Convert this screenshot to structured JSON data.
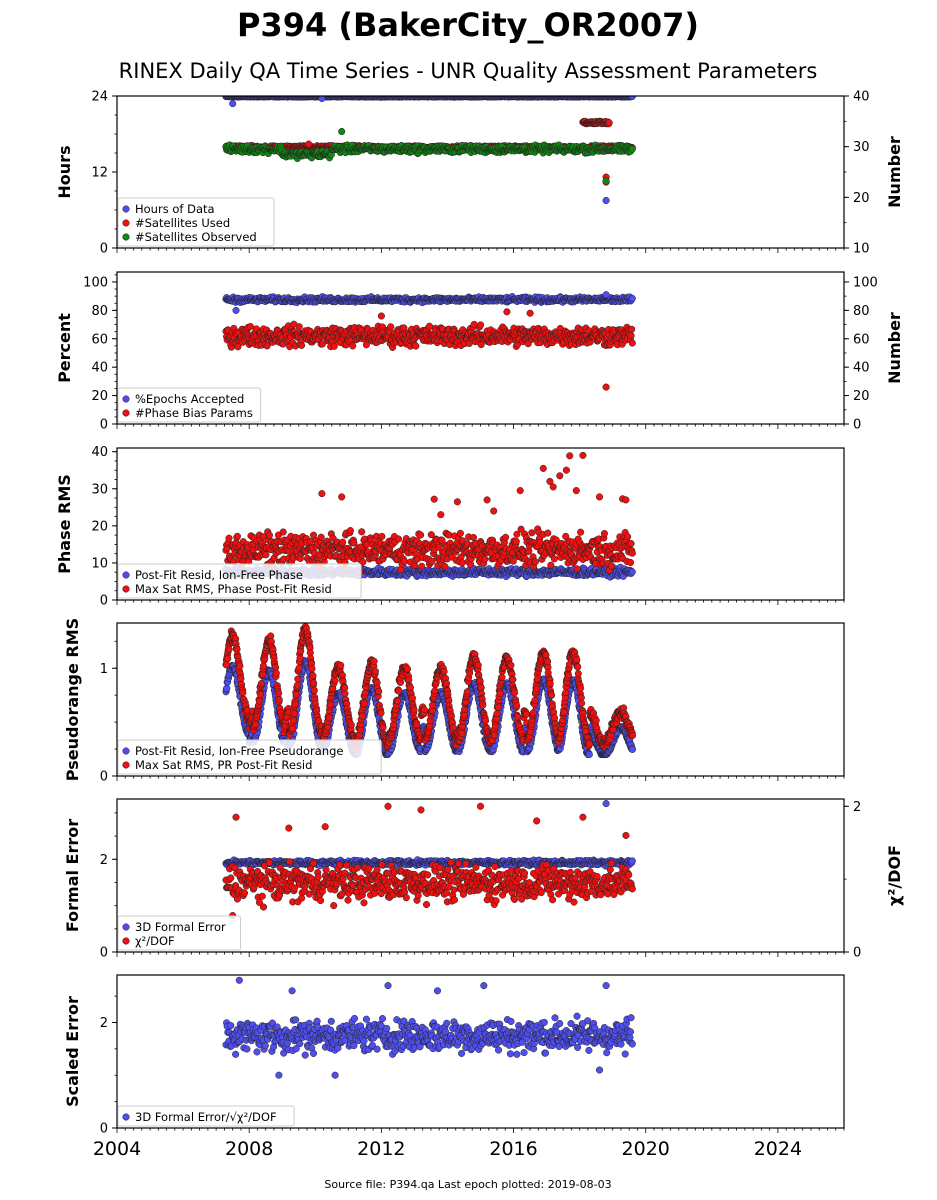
{
  "header": {
    "title": "P394 (BakerCity_OR2007)",
    "subtitle": "RINEX Daily QA Time Series - UNR Quality Assessment Parameters"
  },
  "footer": {
    "text": "Source file: P394.qa Last epoch plotted: 2019-08-03"
  },
  "colors": {
    "blue": "#4f4fef",
    "red": "#ee1111",
    "green": "#118811",
    "edge": "#222222"
  },
  "chart_data": [
    {
      "type": "scatter",
      "ylabel": "Hours",
      "ylabel_right": "Number",
      "xlim": [
        2004,
        2026
      ],
      "ylim": [
        0,
        24
      ],
      "yticks": [
        0,
        12,
        24
      ],
      "ylim_right": [
        10,
        40
      ],
      "yticks_right": [
        10,
        20,
        30,
        40
      ],
      "legend": "lower-left",
      "series": [
        {
          "name": "Hours of Data",
          "color": "blue",
          "axis": "left",
          "band": [
            23.8,
            24.0
          ],
          "x_range": [
            2007.3,
            2019.6
          ],
          "outliers": [
            [
              2007.5,
              22.8
            ],
            [
              2010.2,
              23.6
            ],
            [
              2018.8,
              7.5
            ]
          ]
        },
        {
          "name": "#Satellites Used",
          "color": "red",
          "axis": "right",
          "band": [
            29.5,
            30.3
          ],
          "x_range": [
            2007.3,
            2019.6
          ],
          "extra_band": {
            "x": [
              2018.1,
              2018.9
            ],
            "y": [
              34.5,
              35
            ]
          },
          "outliers": [
            [
              2009.8,
              30.5
            ],
            [
              2018.8,
              24.0
            ],
            [
              2018.8,
              23.0
            ]
          ]
        },
        {
          "name": "#Satellites Observed",
          "color": "green",
          "axis": "right",
          "band": [
            28.5,
            30.5
          ],
          "x_range": [
            2007.3,
            2019.6
          ],
          "dips": [
            [
              2009.0,
              2010.5,
              27.5,
              29.5
            ]
          ],
          "outliers": [
            [
              2010.8,
              33.0
            ],
            [
              2018.8,
              23.2
            ]
          ]
        }
      ]
    },
    {
      "type": "scatter",
      "ylabel": "Percent",
      "ylabel_right": "Number",
      "xlim": [
        2004,
        2026
      ],
      "ylim": [
        0,
        107
      ],
      "yticks": [
        0,
        20,
        40,
        60,
        80,
        100
      ],
      "ylim_right": [
        0,
        107
      ],
      "yticks_right": [
        0,
        20,
        40,
        60,
        80,
        100
      ],
      "legend": "lower-left",
      "series": [
        {
          "name": "%Epochs Accepted",
          "color": "blue",
          "axis": "left",
          "band": [
            85,
            90
          ],
          "x_range": [
            2007.3,
            2019.6
          ],
          "outliers": [
            [
              2007.6,
              80
            ],
            [
              2018.8,
              91
            ]
          ]
        },
        {
          "name": "#Phase Bias Params",
          "color": "red",
          "axis": "right",
          "band": [
            52,
            72
          ],
          "x_range": [
            2007.3,
            2019.6
          ],
          "outliers": [
            [
              2018.8,
              26
            ],
            [
              2015.8,
              79
            ],
            [
              2012.0,
              76
            ],
            [
              2016.5,
              78
            ]
          ]
        }
      ]
    },
    {
      "type": "scatter",
      "ylabel": "Phase RMS",
      "xlim": [
        2004,
        2026
      ],
      "ylim": [
        0,
        41
      ],
      "yticks": [
        0,
        10,
        20,
        30,
        40
      ],
      "legend": "lower-left",
      "series": [
        {
          "name": "Post-Fit Resid, Ion-Free Phase",
          "color": "blue",
          "band": [
            6,
            9
          ],
          "x_range": [
            2007.3,
            2019.6
          ],
          "outliers": []
        },
        {
          "name": "Max Sat RMS, Phase Post-Fit Resid",
          "color": "red",
          "band": [
            7,
            20
          ],
          "x_range": [
            2007.3,
            2019.6
          ],
          "outliers": [
            [
              2010.2,
              28.7
            ],
            [
              2010.8,
              27.8
            ],
            [
              2013.6,
              27.2
            ],
            [
              2014.3,
              26.5
            ],
            [
              2015.2,
              27.0
            ],
            [
              2016.9,
              35.5
            ],
            [
              2017.1,
              32.0
            ],
            [
              2017.2,
              30.5
            ],
            [
              2017.4,
              33.5
            ],
            [
              2017.6,
              35.0
            ],
            [
              2017.7,
              38.9
            ],
            [
              2017.9,
              29.5
            ],
            [
              2018.1,
              39.0
            ],
            [
              2018.6,
              27.8
            ],
            [
              2019.3,
              27.3
            ],
            [
              2019.4,
              27.0
            ],
            [
              2013.8,
              23.0
            ],
            [
              2015.4,
              24.0
            ],
            [
              2016.2,
              29.5
            ]
          ]
        }
      ]
    },
    {
      "type": "scatter",
      "ylabel": "Pseudorange RMS",
      "xlim": [
        2004,
        2026
      ],
      "ylim": [
        0,
        1.42
      ],
      "yticks": [
        0,
        1
      ],
      "legend": "lower-left",
      "seasonal": {
        "years": [
          2007.5,
          2008.6,
          2009.7,
          2010.7,
          2011.7,
          2012.7,
          2013.8,
          2014.8,
          2015.8,
          2016.9,
          2017.8
        ],
        "peaks": [
          1.3,
          1.25,
          1.35,
          1.0,
          1.05,
          1.0,
          1.0,
          1.1,
          1.1,
          1.15,
          1.15
        ],
        "troughs": [
          0.55,
          0.45,
          0.4,
          0.35,
          0.3,
          0.35,
          0.35,
          0.35,
          0.35,
          0.35,
          0.3
        ]
      },
      "series": [
        {
          "name": "Post-Fit Resid, Ion-Free Pseudorange",
          "color": "blue",
          "x_range": [
            2007.3,
            2019.6
          ]
        },
        {
          "name": "Max Sat RMS, PR Post-Fit Resid",
          "color": "red",
          "x_range": [
            2007.3,
            2019.6
          ]
        }
      ]
    },
    {
      "type": "scatter",
      "ylabel": "Formal Error",
      "ylabel_right": "χ²/DOF",
      "xlim": [
        2004,
        2026
      ],
      "ylim": [
        0,
        3.3
      ],
      "yticks": [
        0,
        2
      ],
      "ylim_right": [
        0,
        2.1
      ],
      "yticks_right": [
        0,
        2
      ],
      "legend": "lower-left",
      "series": [
        {
          "name": "3D Formal Error",
          "color": "blue",
          "axis": "left",
          "band": [
            1.85,
            2.0
          ],
          "x_range": [
            2007.3,
            2019.6
          ],
          "outliers": [
            [
              2018.8,
              3.2
            ]
          ]
        },
        {
          "name": "χ²/DOF",
          "color": "red",
          "axis": "right",
          "band": [
            0.6,
            1.3
          ],
          "x_range": [
            2007.3,
            2019.6
          ],
          "outliers": [
            [
              2007.6,
              1.85
            ],
            [
              2009.2,
              1.7
            ],
            [
              2010.3,
              1.72
            ],
            [
              2012.2,
              2.0
            ],
            [
              2013.2,
              1.95
            ],
            [
              2015.0,
              2.0
            ],
            [
              2016.7,
              1.8
            ],
            [
              2018.1,
              1.85
            ],
            [
              2019.4,
              1.6
            ],
            [
              2007.5,
              0.5
            ]
          ]
        }
      ]
    },
    {
      "type": "scatter",
      "ylabel": "Scaled Error",
      "xlim": [
        2004,
        2026
      ],
      "ylim": [
        0,
        2.9
      ],
      "yticks": [
        0,
        2
      ],
      "legend": "lower-left",
      "series": [
        {
          "name": "3D Formal Error/√χ²/DOF",
          "color": "blue",
          "band": [
            1.3,
            2.2
          ],
          "x_range": [
            2007.3,
            2019.6
          ],
          "outliers": [
            [
              2007.7,
              2.8
            ],
            [
              2008.9,
              1.0
            ],
            [
              2010.6,
              1.0
            ],
            [
              2012.2,
              2.7
            ],
            [
              2013.7,
              2.6
            ],
            [
              2015.1,
              2.7
            ],
            [
              2018.6,
              1.1
            ],
            [
              2018.8,
              2.7
            ],
            [
              2009.3,
              2.6
            ]
          ]
        }
      ]
    }
  ],
  "xaxis": {
    "ticks": [
      "2004",
      "2008",
      "2012",
      "2016",
      "2020",
      "2024"
    ],
    "tick_values": [
      2004,
      2008,
      2012,
      2016,
      2020,
      2024
    ]
  }
}
